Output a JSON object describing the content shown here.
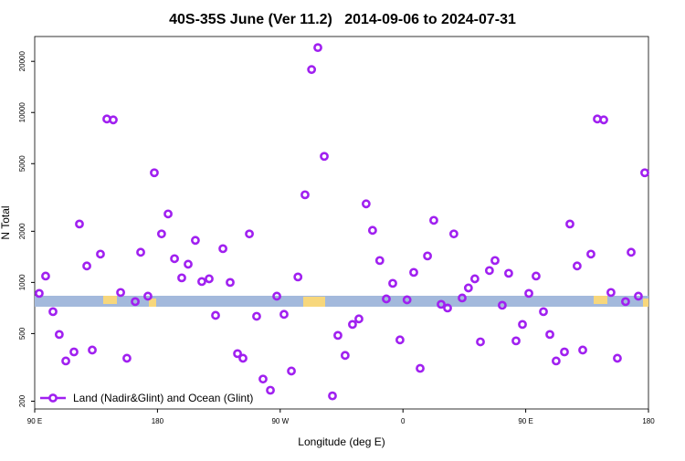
{
  "chart_data": {
    "type": "scatter",
    "title": "40S-35S June (Ver 11.2)   2014-09-06 to 2024-07-31",
    "x_label": "Longitude (deg E)",
    "y_label": "N Total",
    "y_log": true,
    "xlim": [
      90,
      540
    ],
    "ylim": [
      180,
      28000
    ],
    "xticks": [
      {
        "value": 90,
        "label": "90 E"
      },
      {
        "value": 180,
        "label": "180"
      },
      {
        "value": 270,
        "label": "90 W"
      },
      {
        "value": 360,
        "label": "0"
      },
      {
        "value": 450,
        "label": "90 E"
      },
      {
        "value": 540,
        "label": "180"
      }
    ],
    "yticks": [
      200,
      500,
      1000,
      2000,
      5000,
      10000,
      20000
    ],
    "legend": "bottom-left",
    "x": [
      93.3,
      98,
      103.4,
      108,
      112.8,
      118.8,
      122.8,
      128.2,
      132.2,
      138.2,
      142.9,
      147.6,
      153,
      157.6,
      163.7,
      167.7,
      173,
      177.7,
      183,
      187.8,
      192.5,
      197.8,
      202.5,
      207.8,
      212.5,
      217.9,
      222.6,
      228,
      233.3,
      238.7,
      242.7,
      247.4,
      252.7,
      257.4,
      262.8,
      267.5,
      272.8,
      278.2,
      283,
      288.2,
      293,
      297.6,
      302.3,
      308.3,
      312.3,
      317.6,
      323,
      327.7,
      333,
      337.7,
      343,
      347.8,
      352.5,
      357.8,
      363,
      367.9,
      372.6,
      378,
      382.6,
      388,
      392.7,
      397.3,
      403.4,
      408,
      412.7,
      416.8,
      423.4,
      427.5,
      432.8,
      437.5,
      442.9,
      447.6,
      452.3,
      457.6,
      463,
      467.7,
      472.3,
      478.4,
      482.4,
      487.7,
      491.8,
      497.8,
      502.5,
      507.2,
      512.5,
      517.2,
      523.2,
      527.3,
      532.6,
      537.3
    ],
    "series": [
      {
        "name": "Land (Nadir&Glint) and Ocean (Glint)",
        "color": "#a020f0",
        "values": [
          862,
          1090,
          673,
          494,
          345,
          390,
          2207,
          1250,
          400,
          1468,
          9160,
          9050,
          873,
          358,
          771,
          1505,
          830,
          4420,
          1930,
          2530,
          1380,
          1064,
          1280,
          1768,
          1012,
          1050,
          640,
          1580,
          1000,
          381,
          358,
          1930,
          632,
          270,
          232,
          830,
          649,
          301,
          1077,
          3280,
          17900,
          24100,
          5520,
          215,
          488,
          372,
          566,
          610,
          2900,
          2025,
          1346,
          800,
          988,
          459,
          790,
          1146,
          312,
          1432,
          2320,
          743,
          707,
          1930,
          810,
          928,
          1050,
          447,
          1175,
          1346,
          734,
          1132,
          453,
          566,
          862,
          1090,
          673,
          494,
          345,
          390,
          2207,
          1250,
          400,
          1468,
          9160,
          9050,
          873,
          358,
          771,
          1505,
          830,
          4420
        ]
      }
    ]
  }
}
